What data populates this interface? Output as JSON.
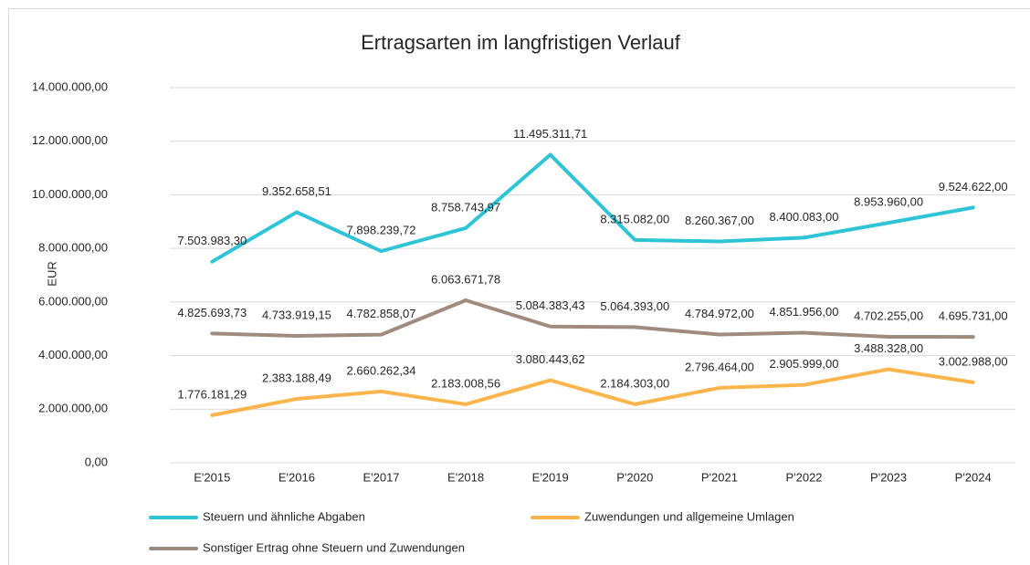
{
  "chart_data": {
    "type": "line",
    "title": "Ertragsarten im langfristigen Verlauf",
    "y_label": "EUR",
    "categories": [
      "E'2015",
      "E'2016",
      "E'2017",
      "E'2018",
      "E'2019",
      "P'2020",
      "P'2021",
      "P'2022",
      "P'2023",
      "P'2024"
    ],
    "series": [
      {
        "name": "Steuern und ähnliche Abgaben",
        "color": "#2ec4d6",
        "values": [
          7503983.3,
          9352658.51,
          7898239.72,
          8758743.97,
          11495311.71,
          8315082,
          8260367,
          8400083,
          8953960,
          9524622
        ],
        "value_labels": [
          "7.503.983,30",
          "9.352.658,51",
          "7.898.239,72",
          "8.758.743,97",
          "11.495.311,71",
          "8.315.082,00",
          "8.260.367,00",
          "8.400.083,00",
          "8.953.960,00",
          "9.524.622,00"
        ]
      },
      {
        "name": "Zuwendungen und allgemeine Umlagen",
        "color": "#fbb54c",
        "values": [
          1776181.29,
          2383188.49,
          2660262.34,
          2183008.56,
          3080443.62,
          2184303,
          2796464,
          2905999,
          3488328,
          3002988
        ],
        "value_labels": [
          "1.776.181,29",
          "2.383.188,49",
          "2.660.262,34",
          "2.183.008,56",
          "3.080.443,62",
          "2.184.303,00",
          "2.796.464,00",
          "2.905.999,00",
          "3.488.328,00",
          "3.002.988,00"
        ]
      },
      {
        "name": "Sonstiger Ertrag ohne Steuern und Zuwendungen",
        "color": "#a08b80",
        "values": [
          4825693.73,
          4733919.15,
          4782858.07,
          6063671.78,
          5084383.43,
          5064393,
          4784972,
          4851956,
          4702255,
          4695731
        ],
        "value_labels": [
          "4.825.693,73",
          "4.733.919,15",
          "4.782.858,07",
          "6.063.671,78",
          "5.084.383,43",
          "5.064.393,00",
          "4.784.972,00",
          "4.851.956,00",
          "4.702.255,00",
          "4.695.731,00"
        ]
      }
    ],
    "ylim": [
      0,
      14000000
    ],
    "yticks": [
      {
        "value": 0,
        "label": "0,00"
      },
      {
        "value": 2000000,
        "label": "2.000.000,00"
      },
      {
        "value": 4000000,
        "label": "4.000.000,00"
      },
      {
        "value": 6000000,
        "label": "6.000.000,00"
      },
      {
        "value": 8000000,
        "label": "8.000.000,00"
      },
      {
        "value": 10000000,
        "label": "10.000.000,00"
      },
      {
        "value": 12000000,
        "label": "12.000.000,00"
      },
      {
        "value": 14000000,
        "label": "14.000.000,00"
      }
    ],
    "grid": true,
    "legend": "bottom"
  }
}
